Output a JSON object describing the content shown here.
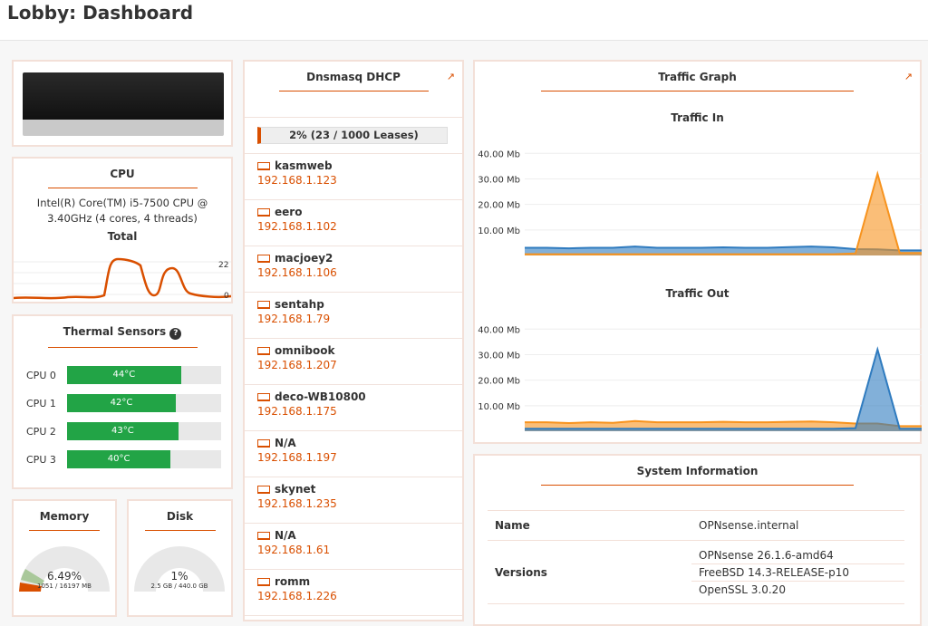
{
  "page": {
    "title": "Lobby: Dashboard"
  },
  "cpu": {
    "title": "CPU",
    "model": "Intel(R) Core(TM) i5-7500 CPU @ 3.40GHz (4 cores, 4 threads)",
    "graph_title": "Total",
    "max_label": "22",
    "min_label": "0"
  },
  "thermal": {
    "title": "Thermal Sensors",
    "help_icon": "question-circle-icon",
    "sensors": [
      {
        "label": "CPU 0",
        "value": "44°C",
        "pct": 44
      },
      {
        "label": "CPU 1",
        "value": "42°C",
        "pct": 42
      },
      {
        "label": "CPU 2",
        "value": "43°C",
        "pct": 43
      },
      {
        "label": "CPU 3",
        "value": "40°C",
        "pct": 40
      }
    ]
  },
  "memory": {
    "title": "Memory",
    "percent": "6.49%",
    "detail": "1051 / 16197 MB",
    "fraction": 0.0649
  },
  "disk": {
    "title": "Disk",
    "percent": "1%",
    "detail": "2.5 GB / 440.0 GB",
    "fraction": 0.01
  },
  "dhcp": {
    "title": "Dnsmasq DHCP",
    "usage": "2% (23 / 1000 Leases)",
    "usage_pct": 2,
    "leases": [
      {
        "name": "kasmweb",
        "ip": "192.168.1.123"
      },
      {
        "name": "eero",
        "ip": "192.168.1.102"
      },
      {
        "name": "macjoey2",
        "ip": "192.168.1.106"
      },
      {
        "name": "sentahp",
        "ip": "192.168.1.79"
      },
      {
        "name": "omnibook",
        "ip": "192.168.1.207"
      },
      {
        "name": "deco-WB10800",
        "ip": "192.168.1.175"
      },
      {
        "name": "N/A",
        "ip": "192.168.1.197"
      },
      {
        "name": "skynet",
        "ip": "192.168.1.235"
      },
      {
        "name": "N/A",
        "ip": "192.168.1.61"
      },
      {
        "name": "romm",
        "ip": "192.168.1.226"
      }
    ]
  },
  "traffic": {
    "title": "Traffic Graph"
  },
  "colors": {
    "accent": "#d94f00",
    "blue": "#2f7bbf",
    "orange": "#f7931e",
    "green": "#22a446"
  },
  "chart_data": [
    {
      "type": "area",
      "title": "Traffic In",
      "yticks": [
        "10.00 Mb",
        "20.00 Mb",
        "30.00 Mb",
        "40.00 Mb"
      ],
      "ylim": [
        0,
        44
      ],
      "series": [
        {
          "color": "#2f7bbf",
          "values": [
            3,
            3,
            2.8,
            3,
            3,
            3.5,
            3,
            3,
            3,
            3.2,
            3,
            3,
            3.3,
            3.5,
            3.2,
            2.5,
            2.4,
            2,
            2
          ]
        },
        {
          "color": "#f7931e",
          "values": [
            0.5,
            0.5,
            0.5,
            0.5,
            0.5,
            0.5,
            0.5,
            0.5,
            0.5,
            0.5,
            0.5,
            0.5,
            0.5,
            0.5,
            0.5,
            0.8,
            32,
            1,
            1
          ]
        }
      ]
    },
    {
      "type": "area",
      "title": "Traffic Out",
      "yticks": [
        "10.00 Mb",
        "20.00 Mb",
        "30.00 Mb",
        "40.00 Mb"
      ],
      "ylim": [
        0,
        44
      ],
      "series": [
        {
          "color": "#f7931e",
          "values": [
            3.5,
            3.5,
            3.2,
            3.5,
            3.3,
            4,
            3.5,
            3.5,
            3.5,
            3.7,
            3.5,
            3.5,
            3.7,
            3.8,
            3.5,
            3,
            3,
            2,
            2
          ]
        },
        {
          "color": "#2f7bbf",
          "values": [
            1,
            1,
            1,
            1,
            1,
            1,
            1,
            1,
            1,
            1,
            1,
            1,
            1,
            1,
            1,
            1.2,
            32,
            1,
            1
          ]
        }
      ]
    }
  ],
  "sysinfo": {
    "title": "System Information",
    "rows": [
      {
        "label": "Name",
        "values": [
          "OPNsense.internal"
        ]
      },
      {
        "label": "Versions",
        "values": [
          "OPNsense 26.1.6-amd64",
          "FreeBSD 14.3-RELEASE-p10",
          "OpenSSL 3.0.20"
        ]
      }
    ]
  }
}
